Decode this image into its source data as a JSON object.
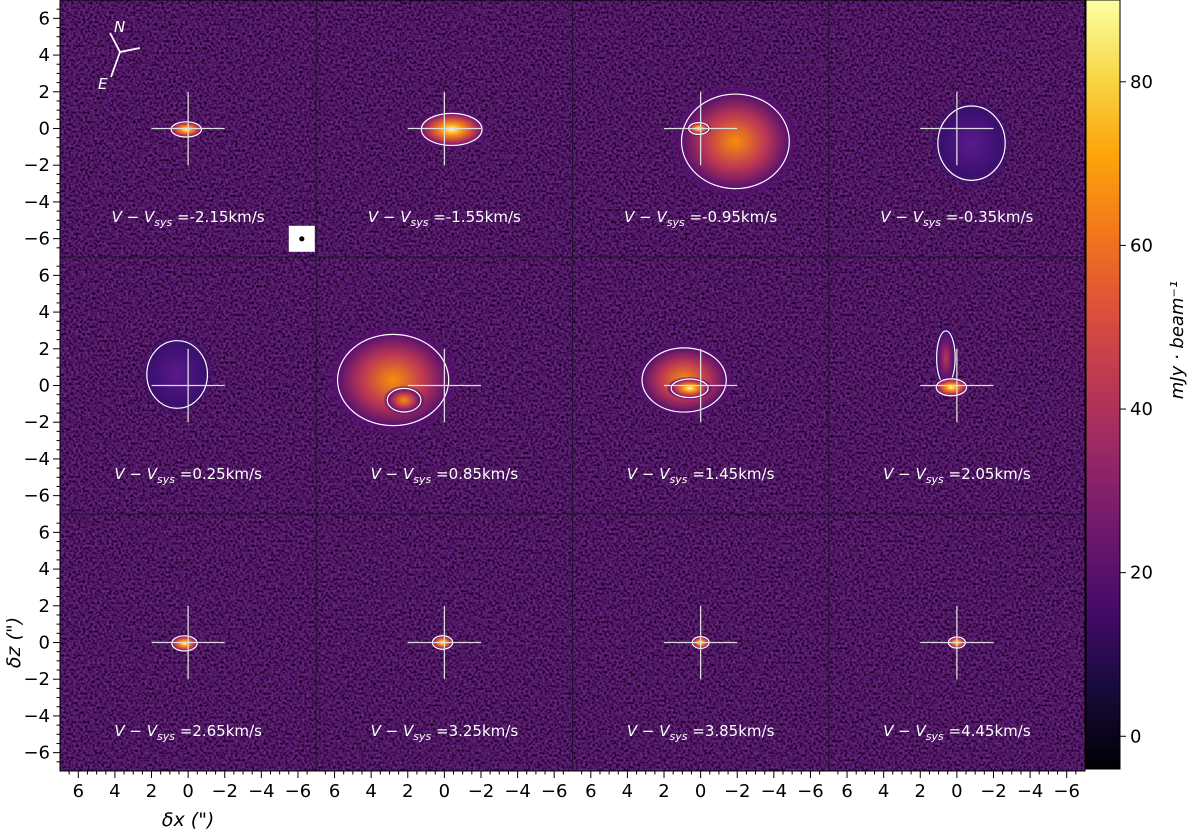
{
  "chart_data": {
    "type": "heatmap",
    "title": "",
    "layout": {
      "rows": 3,
      "cols": 4
    },
    "xlabel": "δx (\")",
    "ylabel": "δz (\")",
    "xlim": [
      7,
      -7
    ],
    "ylim": [
      -7,
      7
    ],
    "x_ticks": [
      6,
      4,
      2,
      0,
      -2,
      -4,
      -6
    ],
    "y_ticks": [
      6,
      4,
      2,
      0,
      -2,
      -4,
      -6
    ],
    "tick_labels": [
      "6",
      "4",
      "2",
      "0",
      "−2",
      "−4",
      "−6"
    ],
    "panel_label_prefix": "V − V",
    "panel_label_subscript": "sys",
    "panel_label_unit": "km/s",
    "panels": [
      {
        "velocity": "-2.15",
        "blobs": [
          {
            "cx": 0.1,
            "cy": -0.05,
            "rx": 0.9,
            "ry": 0.45,
            "peak": 85
          }
        ]
      },
      {
        "velocity": "-1.55",
        "blobs": [
          {
            "cx": -0.4,
            "cy": -0.05,
            "rx": 1.8,
            "ry": 0.95,
            "peak": 80
          }
        ]
      },
      {
        "velocity": "-0.95",
        "blobs": [
          {
            "cx": -1.9,
            "cy": -0.7,
            "rx": 3.2,
            "ry": 2.8,
            "peak": 45
          },
          {
            "cx": 0.1,
            "cy": 0.0,
            "rx": 0.6,
            "ry": 0.35,
            "peak": 80
          }
        ]
      },
      {
        "velocity": "-0.35",
        "blobs": [
          {
            "cx": -0.8,
            "cy": -0.8,
            "rx": 2.0,
            "ry": 2.2,
            "peak": 14
          }
        ]
      },
      {
        "velocity": "0.25",
        "blobs": [
          {
            "cx": 0.6,
            "cy": 0.6,
            "rx": 1.8,
            "ry": 2.0,
            "peak": 14
          }
        ]
      },
      {
        "velocity": "0.85",
        "blobs": [
          {
            "cx": 2.8,
            "cy": 0.3,
            "rx": 3.3,
            "ry": 2.7,
            "peak": 48
          },
          {
            "cx": 2.2,
            "cy": -0.8,
            "rx": 1.0,
            "ry": 0.7,
            "peak": 70
          }
        ]
      },
      {
        "velocity": "1.45",
        "blobs": [
          {
            "cx": 0.9,
            "cy": 0.3,
            "rx": 2.5,
            "ry": 1.9,
            "peak": 55
          },
          {
            "cx": 0.6,
            "cy": -0.15,
            "rx": 1.1,
            "ry": 0.55,
            "peak": 80
          }
        ]
      },
      {
        "velocity": "2.05",
        "blobs": [
          {
            "cx": 0.6,
            "cy": 1.5,
            "rx": 0.55,
            "ry": 1.6,
            "peak": 35
          },
          {
            "cx": 0.3,
            "cy": -0.1,
            "rx": 0.9,
            "ry": 0.5,
            "peak": 85
          }
        ]
      },
      {
        "velocity": "2.65",
        "blobs": [
          {
            "cx": 0.2,
            "cy": -0.05,
            "rx": 0.75,
            "ry": 0.45,
            "peak": 85
          }
        ]
      },
      {
        "velocity": "3.25",
        "blobs": [
          {
            "cx": 0.1,
            "cy": 0.0,
            "rx": 0.6,
            "ry": 0.4,
            "peak": 80
          }
        ]
      },
      {
        "velocity": "3.85",
        "blobs": [
          {
            "cx": 0.0,
            "cy": 0.0,
            "rx": 0.5,
            "ry": 0.35,
            "peak": 75
          }
        ]
      },
      {
        "velocity": "4.45",
        "blobs": [
          {
            "cx": 0.0,
            "cy": 0.0,
            "rx": 0.5,
            "ry": 0.33,
            "peak": 75
          }
        ]
      }
    ],
    "colorbar": {
      "label": "mJy · beam⁻¹",
      "range": [
        -4,
        90
      ],
      "ticks": [
        0,
        20,
        40,
        60,
        80
      ],
      "colormap": "inferno"
    },
    "compass": {
      "north": "N",
      "east": "E"
    },
    "contour_color": "#ffffff",
    "crosshair_color": "#dddddd"
  }
}
